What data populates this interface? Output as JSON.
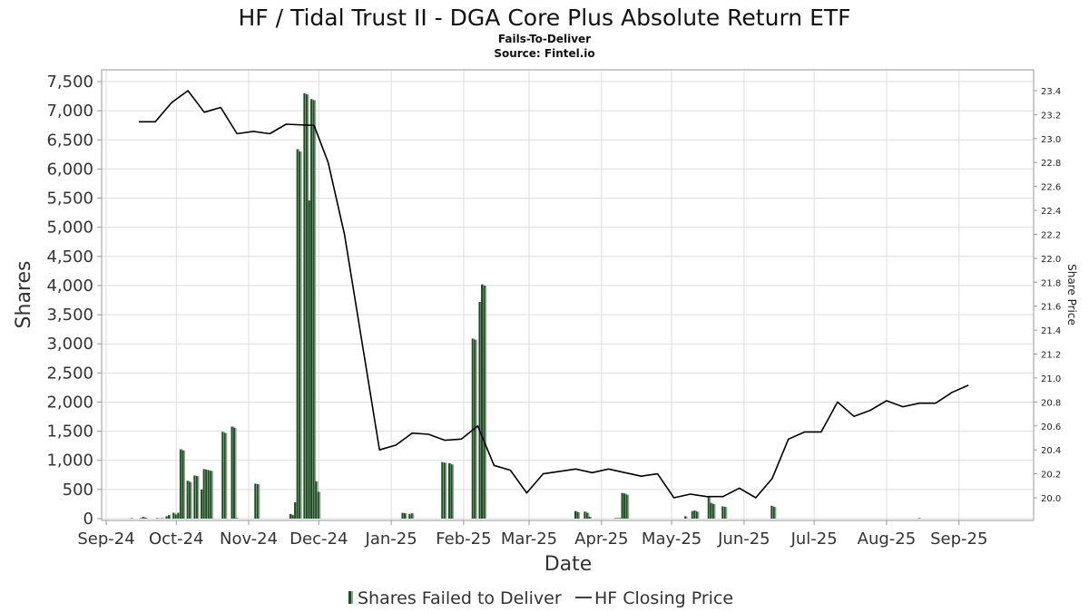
{
  "colors": {
    "bar_dark": "#1f4d24",
    "bar_light": "#8aa58c",
    "price_line": "#000000",
    "grid": "#dddddd",
    "frame": "#999999"
  },
  "legend": {
    "ftd_label": "Shares Failed to Deliver",
    "price_label": "HF Closing Price"
  },
  "chart_data": {
    "type": "bar",
    "title": "HF / Tidal Trust II - DGA Core Plus Absolute Return ETF",
    "subtitle": "Fails-To-Deliver",
    "source": "Source: Fintel.io",
    "xlabel": "Date",
    "ylabel": "Shares",
    "y2label": "Share Price",
    "ylim": [
      0,
      7500
    ],
    "y2lim": [
      19.8,
      23.5
    ],
    "grid": true,
    "legend_position": "bottom",
    "x_ticks": [
      "Sep-24",
      "Oct-24",
      "Nov-24",
      "Dec-24",
      "Jan-25",
      "Feb-25",
      "Mar-25",
      "Apr-25",
      "May-25",
      "Jun-25",
      "Jul-25",
      "Aug-25",
      "Sep-25"
    ],
    "y_ticks": [
      "0",
      "500",
      "1,000",
      "1,500",
      "2,000",
      "2,500",
      "3,000",
      "3,500",
      "4,000",
      "4,500",
      "5,000",
      "5,500",
      "6,000",
      "6,500",
      "7,000",
      "7,500"
    ],
    "y2_ticks": [
      "20.0",
      "20.2",
      "20.4",
      "20.6",
      "20.8",
      "21.0",
      "21.2",
      "21.4",
      "21.6",
      "21.8",
      "22.0",
      "22.2",
      "22.4",
      "22.6",
      "22.8",
      "23.0",
      "23.2",
      "23.4"
    ],
    "series": [
      {
        "name": "Shares Failed to Deliver",
        "kind": "bar",
        "points": [
          {
            "x": "2024-09-12",
            "y": 5
          },
          {
            "x": "2024-09-16",
            "y": 10
          },
          {
            "x": "2024-09-17",
            "y": 30
          },
          {
            "x": "2024-09-18",
            "y": 15
          },
          {
            "x": "2024-09-23",
            "y": 10
          },
          {
            "x": "2024-09-25",
            "y": 5
          },
          {
            "x": "2024-09-27",
            "y": 40
          },
          {
            "x": "2024-09-28",
            "y": 60
          },
          {
            "x": "2024-09-30",
            "y": 100
          },
          {
            "x": "2024-10-01",
            "y": 70
          },
          {
            "x": "2024-10-02",
            "y": 100
          },
          {
            "x": "2024-10-03",
            "y": 1190
          },
          {
            "x": "2024-10-04",
            "y": 1170
          },
          {
            "x": "2024-10-06",
            "y": 650
          },
          {
            "x": "2024-10-07",
            "y": 630
          },
          {
            "x": "2024-10-09",
            "y": 740
          },
          {
            "x": "2024-10-10",
            "y": 730
          },
          {
            "x": "2024-10-12",
            "y": 500
          },
          {
            "x": "2024-10-13",
            "y": 850
          },
          {
            "x": "2024-10-14",
            "y": 840
          },
          {
            "x": "2024-10-15",
            "y": 830
          },
          {
            "x": "2024-10-16",
            "y": 820
          },
          {
            "x": "2024-10-21",
            "y": 1490
          },
          {
            "x": "2024-10-22",
            "y": 1470
          },
          {
            "x": "2024-10-25",
            "y": 1580
          },
          {
            "x": "2024-10-26",
            "y": 1560
          },
          {
            "x": "2024-10-27",
            "y": 10
          },
          {
            "x": "2024-11-04",
            "y": 600
          },
          {
            "x": "2024-11-05",
            "y": 590
          },
          {
            "x": "2024-11-19",
            "y": 80
          },
          {
            "x": "2024-11-20",
            "y": 60
          },
          {
            "x": "2024-11-21",
            "y": 280
          },
          {
            "x": "2024-11-22",
            "y": 6340
          },
          {
            "x": "2024-11-23",
            "y": 6300
          },
          {
            "x": "2024-11-25",
            "y": 7300
          },
          {
            "x": "2024-11-26",
            "y": 7280
          },
          {
            "x": "2024-11-27",
            "y": 5460
          },
          {
            "x": "2024-11-28",
            "y": 7200
          },
          {
            "x": "2024-11-29",
            "y": 7180
          },
          {
            "x": "2024-11-30",
            "y": 640
          },
          {
            "x": "2024-12-01",
            "y": 460
          },
          {
            "x": "2025-01-06",
            "y": 100
          },
          {
            "x": "2025-01-07",
            "y": 90
          },
          {
            "x": "2025-01-09",
            "y": 80
          },
          {
            "x": "2025-01-10",
            "y": 90
          },
          {
            "x": "2025-01-23",
            "y": 970
          },
          {
            "x": "2025-01-24",
            "y": 960
          },
          {
            "x": "2025-01-26",
            "y": 950
          },
          {
            "x": "2025-01-27",
            "y": 930
          },
          {
            "x": "2025-02-05",
            "y": 3090
          },
          {
            "x": "2025-02-06",
            "y": 3070
          },
          {
            "x": "2025-02-08",
            "y": 3720
          },
          {
            "x": "2025-02-09",
            "y": 4020
          },
          {
            "x": "2025-02-10",
            "y": 4000
          },
          {
            "x": "2025-03-21",
            "y": 130
          },
          {
            "x": "2025-03-22",
            "y": 110
          },
          {
            "x": "2025-03-25",
            "y": 120
          },
          {
            "x": "2025-03-26",
            "y": 100
          },
          {
            "x": "2025-03-27",
            "y": 30
          },
          {
            "x": "2025-04-07",
            "y": 5
          },
          {
            "x": "2025-04-08",
            "y": 10
          },
          {
            "x": "2025-04-09",
            "y": 10
          },
          {
            "x": "2025-04-10",
            "y": 440
          },
          {
            "x": "2025-04-11",
            "y": 430
          },
          {
            "x": "2025-04-12",
            "y": 410
          },
          {
            "x": "2025-05-07",
            "y": 40
          },
          {
            "x": "2025-05-10",
            "y": 130
          },
          {
            "x": "2025-05-11",
            "y": 140
          },
          {
            "x": "2025-05-12",
            "y": 120
          },
          {
            "x": "2025-05-17",
            "y": 380
          },
          {
            "x": "2025-05-18",
            "y": 270
          },
          {
            "x": "2025-05-19",
            "y": 250
          },
          {
            "x": "2025-05-23",
            "y": 210
          },
          {
            "x": "2025-05-24",
            "y": 200
          },
          {
            "x": "2025-06-13",
            "y": 220
          },
          {
            "x": "2025-06-14",
            "y": 200
          },
          {
            "x": "2025-08-15",
            "y": 5
          }
        ]
      },
      {
        "name": "HF Closing Price",
        "kind": "line",
        "points": [
          {
            "x": "2024-09-15",
            "y": 23.14
          },
          {
            "x": "2024-09-22",
            "y": 23.14
          },
          {
            "x": "2024-09-29",
            "y": 23.3
          },
          {
            "x": "2024-10-06",
            "y": 23.4
          },
          {
            "x": "2024-10-13",
            "y": 23.22
          },
          {
            "x": "2024-10-20",
            "y": 23.26
          },
          {
            "x": "2024-10-27",
            "y": 23.04
          },
          {
            "x": "2024-11-03",
            "y": 23.06
          },
          {
            "x": "2024-11-10",
            "y": 23.04
          },
          {
            "x": "2024-11-17",
            "y": 23.12
          },
          {
            "x": "2024-11-29",
            "y": 23.11
          },
          {
            "x": "2024-12-05",
            "y": 22.8
          },
          {
            "x": "2024-12-12",
            "y": 22.2
          },
          {
            "x": "2024-12-27",
            "y": 20.4
          },
          {
            "x": "2025-01-03",
            "y": 20.44
          },
          {
            "x": "2025-01-10",
            "y": 20.54
          },
          {
            "x": "2025-01-17",
            "y": 20.53
          },
          {
            "x": "2025-01-24",
            "y": 20.48
          },
          {
            "x": "2025-01-31",
            "y": 20.49
          },
          {
            "x": "2025-02-07",
            "y": 20.6
          },
          {
            "x": "2025-02-14",
            "y": 20.27
          },
          {
            "x": "2025-02-21",
            "y": 20.23
          },
          {
            "x": "2025-02-28",
            "y": 20.04
          },
          {
            "x": "2025-03-07",
            "y": 20.2
          },
          {
            "x": "2025-03-14",
            "y": 20.22
          },
          {
            "x": "2025-03-21",
            "y": 20.24
          },
          {
            "x": "2025-03-28",
            "y": 20.21
          },
          {
            "x": "2025-04-04",
            "y": 20.24
          },
          {
            "x": "2025-04-11",
            "y": 20.21
          },
          {
            "x": "2025-04-18",
            "y": 20.18
          },
          {
            "x": "2025-04-25",
            "y": 20.2
          },
          {
            "x": "2025-05-02",
            "y": 20.0
          },
          {
            "x": "2025-05-09",
            "y": 20.03
          },
          {
            "x": "2025-05-16",
            "y": 20.01
          },
          {
            "x": "2025-05-23",
            "y": 20.01
          },
          {
            "x": "2025-05-30",
            "y": 20.08
          },
          {
            "x": "2025-06-06",
            "y": 20.0
          },
          {
            "x": "2025-06-13",
            "y": 20.16
          },
          {
            "x": "2025-06-20",
            "y": 20.49
          },
          {
            "x": "2025-06-27",
            "y": 20.55
          },
          {
            "x": "2025-07-04",
            "y": 20.55
          },
          {
            "x": "2025-07-11",
            "y": 20.8
          },
          {
            "x": "2025-07-18",
            "y": 20.68
          },
          {
            "x": "2025-07-25",
            "y": 20.73
          },
          {
            "x": "2025-08-01",
            "y": 20.81
          },
          {
            "x": "2025-08-08",
            "y": 20.76
          },
          {
            "x": "2025-08-15",
            "y": 20.79
          },
          {
            "x": "2025-08-22",
            "y": 20.79
          },
          {
            "x": "2025-08-29",
            "y": 20.88
          },
          {
            "x": "2025-09-05",
            "y": 20.94
          }
        ]
      }
    ]
  }
}
